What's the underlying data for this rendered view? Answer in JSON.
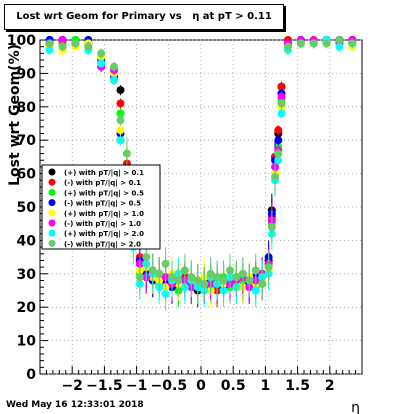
{
  "title": "Lost wrt Geom for Primary vs   η at pT > 0.11",
  "footer_timestamp": "Wed May 16 12:33:01 2018",
  "chart_data": {
    "type": "scatter",
    "title": "Lost wrt Geom for Primary vs   η at pT > 0.11",
    "xlabel": "η",
    "ylabel": "Lost wrt Geom(%)",
    "xlim": [
      -2.5,
      2.5
    ],
    "ylim": [
      0,
      100
    ],
    "xticks": [
      -2,
      -1.5,
      -1,
      -0.5,
      0,
      0.5,
      1,
      1.5,
      2
    ],
    "xtick_labels": [
      "−2",
      "−1.5",
      "−1",
      "−0.5",
      "0",
      "0.5",
      "1",
      "1.5",
      "2"
    ],
    "yticks": [
      0,
      10,
      20,
      30,
      40,
      50,
      60,
      70,
      80,
      90,
      100
    ],
    "grid": true,
    "legend_position": "left-middle",
    "series": [
      {
        "name": "(+) with pT/|q| > 0.1",
        "color": "#000000",
        "marker": "circle",
        "x": [
          -2.35,
          -2.15,
          -1.95,
          -1.75,
          -1.55,
          -1.35,
          -1.25,
          -1.15,
          -1.05,
          -0.95,
          -0.85,
          -0.75,
          -0.65,
          -0.55,
          -0.45,
          -0.35,
          -0.25,
          -0.15,
          -0.05,
          0.05,
          0.15,
          0.25,
          0.35,
          0.45,
          0.55,
          0.65,
          0.75,
          0.85,
          0.95,
          1.05,
          1.1,
          1.15,
          1.2,
          1.25,
          1.35,
          1.55,
          1.75,
          1.95,
          2.15,
          2.35
        ],
        "y": [
          99,
          100,
          100,
          99,
          92,
          90,
          85,
          62,
          45,
          33,
          31,
          29,
          28,
          27,
          27,
          26,
          28,
          26,
          25,
          27,
          26,
          26,
          28,
          27,
          28,
          27,
          26,
          28,
          29,
          34,
          49,
          65,
          72,
          86,
          99,
          100,
          100,
          100,
          100,
          99
        ]
      },
      {
        "name": "(-) with pT/|q| > 0.1",
        "color": "#ff0000",
        "marker": "circle",
        "x": [
          -2.35,
          -2.15,
          -1.95,
          -1.75,
          -1.55,
          -1.35,
          -1.25,
          -1.15,
          -1.05,
          -0.95,
          -0.85,
          -0.75,
          -0.65,
          -0.55,
          -0.45,
          -0.35,
          -0.25,
          -0.15,
          -0.05,
          0.05,
          0.15,
          0.25,
          0.35,
          0.45,
          0.55,
          0.65,
          0.75,
          0.85,
          0.95,
          1.05,
          1.1,
          1.15,
          1.2,
          1.25,
          1.35,
          1.55,
          1.75,
          1.95,
          2.15,
          2.35
        ],
        "y": [
          100,
          99,
          100,
          99,
          93,
          88,
          81,
          63,
          46,
          35,
          30,
          28,
          30,
          27,
          26,
          27,
          29,
          27,
          26,
          27,
          27,
          25,
          27,
          28,
          26,
          28,
          27,
          27,
          30,
          33,
          47,
          65,
          73,
          86,
          100,
          99,
          100,
          100,
          99,
          100
        ]
      },
      {
        "name": "(+) with pT/|q| > 0.5",
        "color": "#00ff00",
        "marker": "circle",
        "x": [
          -2.35,
          -2.15,
          -1.95,
          -1.75,
          -1.55,
          -1.35,
          -1.25,
          -1.15,
          -1.05,
          -0.95,
          -0.85,
          -0.75,
          -0.65,
          -0.55,
          -0.45,
          -0.35,
          -0.25,
          -0.15,
          -0.05,
          0.05,
          0.15,
          0.25,
          0.35,
          0.45,
          0.55,
          0.65,
          0.75,
          0.85,
          0.95,
          1.05,
          1.1,
          1.15,
          1.2,
          1.25,
          1.35,
          1.55,
          1.75,
          1.95,
          2.15,
          2.35
        ],
        "y": [
          99,
          99,
          100,
          100,
          95,
          91,
          78,
          55,
          40,
          30,
          29,
          31,
          27,
          28,
          29,
          25,
          27,
          29,
          26,
          28,
          26,
          27,
          29,
          26,
          27,
          28,
          28,
          26,
          28,
          32,
          45,
          60,
          68,
          82,
          98,
          100,
          100,
          99,
          100,
          99
        ]
      },
      {
        "name": "(-) with pT/|q| > 0.5",
        "color": "#0000ff",
        "marker": "circle",
        "x": [
          -2.35,
          -2.15,
          -1.95,
          -1.75,
          -1.55,
          -1.35,
          -1.25,
          -1.15,
          -1.05,
          -0.95,
          -0.85,
          -0.75,
          -0.65,
          -0.55,
          -0.45,
          -0.35,
          -0.25,
          -0.15,
          -0.05,
          0.05,
          0.15,
          0.25,
          0.35,
          0.45,
          0.55,
          0.65,
          0.75,
          0.85,
          0.95,
          1.05,
          1.1,
          1.15,
          1.2,
          1.25,
          1.35,
          1.55,
          1.75,
          1.95,
          2.15,
          2.35
        ],
        "y": [
          100,
          100,
          99,
          100,
          94,
          89,
          72,
          58,
          48,
          34,
          30,
          28,
          29,
          28,
          26,
          28,
          27,
          27,
          27,
          26,
          28,
          27,
          26,
          28,
          29,
          26,
          27,
          29,
          27,
          35,
          48,
          64,
          70,
          84,
          99,
          100,
          99,
          100,
          100,
          100
        ]
      },
      {
        "name": "(+) with pT/|q| > 1.0",
        "color": "#ffff00",
        "marker": "circle",
        "x": [
          -2.35,
          -2.15,
          -1.95,
          -1.75,
          -1.55,
          -1.35,
          -1.25,
          -1.15,
          -1.05,
          -0.95,
          -0.85,
          -0.75,
          -0.65,
          -0.55,
          -0.45,
          -0.35,
          -0.25,
          -0.15,
          -0.05,
          0.05,
          0.15,
          0.25,
          0.35,
          0.45,
          0.55,
          0.65,
          0.75,
          0.85,
          0.95,
          1.05,
          1.1,
          1.15,
          1.2,
          1.25,
          1.35,
          1.55,
          1.75,
          1.95,
          2.15,
          2.35
        ],
        "y": [
          98,
          97,
          98,
          99,
          95,
          90,
          73,
          50,
          40,
          31,
          32,
          29,
          28,
          26,
          30,
          27,
          26,
          28,
          27,
          29,
          25,
          28,
          27,
          29,
          27,
          26,
          29,
          27,
          28,
          31,
          44,
          60,
          66,
          80,
          98,
          99,
          100,
          99,
          99,
          98
        ]
      },
      {
        "name": "(-) with pT/|q| > 1.0",
        "color": "#ff00ff",
        "marker": "circle",
        "x": [
          -2.35,
          -2.15,
          -1.95,
          -1.75,
          -1.55,
          -1.35,
          -1.25,
          -1.15,
          -1.05,
          -0.95,
          -0.85,
          -0.75,
          -0.65,
          -0.55,
          -0.45,
          -0.35,
          -0.25,
          -0.15,
          -0.05,
          0.05,
          0.15,
          0.25,
          0.35,
          0.45,
          0.55,
          0.65,
          0.75,
          0.85,
          0.95,
          1.05,
          1.1,
          1.15,
          1.2,
          1.25,
          1.35,
          1.55,
          1.75,
          1.95,
          2.15,
          2.35
        ],
        "y": [
          99,
          100,
          99,
          98,
          92,
          91,
          70,
          52,
          44,
          33,
          29,
          31,
          30,
          29,
          27,
          29,
          28,
          26,
          28,
          26,
          27,
          28,
          28,
          27,
          28,
          29,
          26,
          28,
          30,
          33,
          46,
          62,
          67,
          83,
          99,
          100,
          100,
          100,
          99,
          100
        ]
      },
      {
        "name": "(+) with pT/|q| > 2.0",
        "color": "#00ffff",
        "marker": "circle",
        "x": [
          -2.35,
          -2.15,
          -1.95,
          -1.75,
          -1.55,
          -1.35,
          -1.25,
          -1.15,
          -1.05,
          -0.95,
          -0.85,
          -0.75,
          -0.65,
          -0.55,
          -0.45,
          -0.35,
          -0.25,
          -0.15,
          -0.05,
          0.05,
          0.15,
          0.25,
          0.35,
          0.45,
          0.55,
          0.65,
          0.75,
          0.85,
          0.95,
          1.05,
          1.1,
          1.15,
          1.2,
          1.25,
          1.35,
          1.55,
          1.75,
          1.95,
          2.15,
          2.35
        ],
        "y": [
          97,
          98,
          99,
          97,
          93,
          88,
          70,
          48,
          38,
          27,
          33,
          30,
          26,
          24,
          28,
          30,
          26,
          28,
          26,
          25,
          29,
          27,
          25,
          29,
          26,
          30,
          28,
          25,
          29,
          30,
          42,
          58,
          64,
          78,
          97,
          99,
          99,
          100,
          98,
          99
        ]
      },
      {
        "name": "(-) with pT/|q| > 2.0",
        "color": "#66cc66",
        "marker": "circle",
        "x": [
          -2.35,
          -2.15,
          -1.95,
          -1.75,
          -1.55,
          -1.35,
          -1.25,
          -1.15,
          -1.05,
          -0.95,
          -0.85,
          -0.75,
          -0.65,
          -0.55,
          -0.45,
          -0.35,
          -0.25,
          -0.15,
          -0.05,
          0.05,
          0.15,
          0.25,
          0.35,
          0.45,
          0.55,
          0.65,
          0.75,
          0.85,
          0.95,
          1.05,
          1.1,
          1.15,
          1.2,
          1.25,
          1.35,
          1.55,
          1.75,
          1.95,
          2.15,
          2.35
        ],
        "y": [
          99,
          98,
          99,
          98,
          96,
          92,
          76,
          66,
          42,
          29,
          35,
          31,
          30,
          33,
          29,
          28,
          31,
          29,
          28,
          27,
          30,
          29,
          28,
          31,
          29,
          30,
          28,
          31,
          27,
          32,
          44,
          59,
          66,
          81,
          98,
          99,
          99,
          99,
          100,
          99
        ]
      }
    ]
  }
}
